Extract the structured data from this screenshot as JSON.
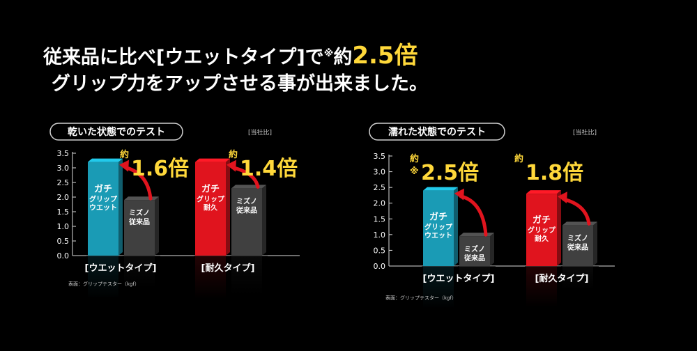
{
  "headline": {
    "line1_pre": "従来品に比べ[ウエットタイプ]で",
    "line1_note": "※",
    "line1_approx": "約",
    "line1_big": "2.5倍",
    "line2": "グリップ力をアップさせる事が出来ました。"
  },
  "chart_data": [
    {
      "type": "bar",
      "title": "乾いた状態でのテスト",
      "note": "[当社比]",
      "source": "表面：グリップテスター（kgf）",
      "ylim": [
        0,
        3.5
      ],
      "yticks": [
        "0.0",
        "0.5",
        "1.0",
        "1.5",
        "2.0",
        "2.5",
        "3.0",
        "3.5"
      ],
      "groups": [
        {
          "label": "[ウエットタイプ]",
          "bars": [
            {
              "name": "ガチ\nグリップ\nウエット",
              "value": 3.2,
              "color": "#1a9bb5"
            },
            {
              "name": "ミズノ\n従来品",
              "value": 1.9,
              "color": "#404040"
            }
          ],
          "ratio_prefix": "約",
          "ratio_note": "",
          "ratio": "1.6倍"
        },
        {
          "label": "[耐久タイプ]",
          "bars": [
            {
              "name": "ガチ\nグリップ\n耐久",
              "value": 3.2,
              "color": "#e0141e"
            },
            {
              "name": "ミズノ\n従来品",
              "value": 2.3,
              "color": "#404040"
            }
          ],
          "ratio_prefix": "約",
          "ratio_note": "",
          "ratio": "1.4倍"
        }
      ]
    },
    {
      "type": "bar",
      "title": "濡れた状態でのテスト",
      "note": "[当社比]",
      "source": "表面：グリップテスター（kgf）",
      "ylim": [
        0,
        3.5
      ],
      "yticks": [
        "0.0",
        "0.5",
        "1.0",
        "1.5",
        "2.0",
        "2.5",
        "3.0",
        "3.5"
      ],
      "groups": [
        {
          "label": "[ウエットタイプ]",
          "bars": [
            {
              "name": "ガチ\nグリップ\nウエット",
              "value": 2.4,
              "color": "#1a9bb5"
            },
            {
              "name": "ミズノ\n従来品",
              "value": 0.95,
              "color": "#404040"
            }
          ],
          "ratio_prefix": "約",
          "ratio_note": "※",
          "ratio": "2.5倍"
        },
        {
          "label": "[耐久タイプ]",
          "bars": [
            {
              "name": "ガチ\nグリップ\n耐久",
              "value": 2.3,
              "color": "#e0141e"
            },
            {
              "name": "ミズノ\n従来品",
              "value": 1.3,
              "color": "#404040"
            }
          ],
          "ratio_prefix": "約",
          "ratio_note": "",
          "ratio": "1.8倍"
        }
      ]
    }
  ]
}
